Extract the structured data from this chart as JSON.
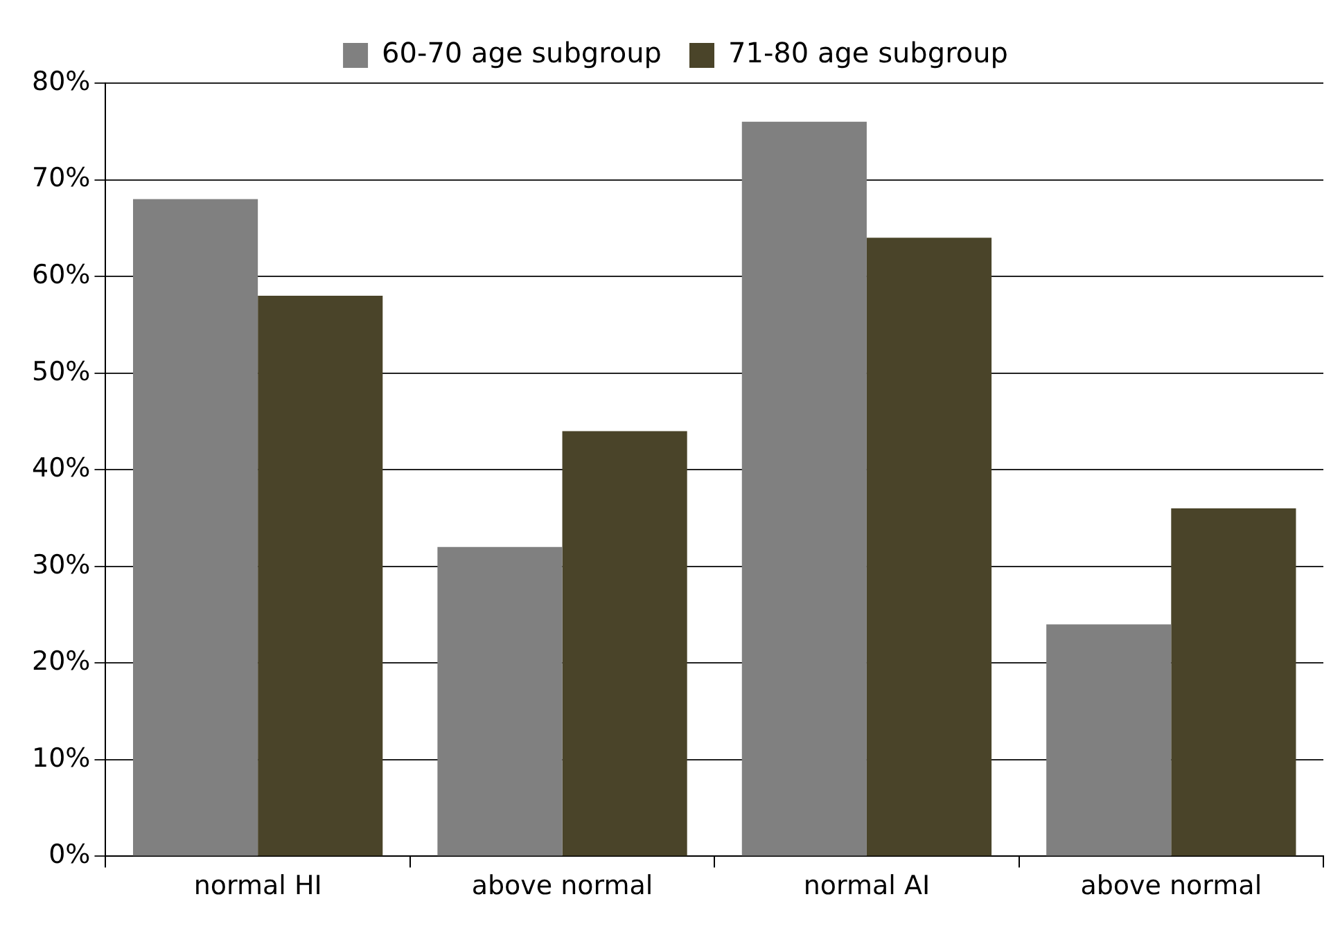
{
  "chart_data": {
    "type": "bar",
    "categories": [
      "normal HI",
      "above normal",
      "normal AI",
      "above normal"
    ],
    "series": [
      {
        "name": "60-70 age subgroup",
        "color": "#808080",
        "values": [
          68,
          32,
          76,
          24
        ]
      },
      {
        "name": "71-80 age subgroup",
        "color": "#4a4429",
        "values": [
          58,
          44,
          64,
          36
        ]
      }
    ],
    "ylim": [
      0,
      80
    ],
    "yticks": [
      {
        "value": 0,
        "label": "0%"
      },
      {
        "value": 10,
        "label": "10%"
      },
      {
        "value": 20,
        "label": "20%"
      },
      {
        "value": 30,
        "label": "30%"
      },
      {
        "value": 40,
        "label": "40%"
      },
      {
        "value": 50,
        "label": "50%"
      },
      {
        "value": 60,
        "label": "60%"
      },
      {
        "value": 70,
        "label": "70%"
      },
      {
        "value": 80,
        "label": "80%"
      }
    ],
    "grid": "y",
    "legend": "top"
  }
}
